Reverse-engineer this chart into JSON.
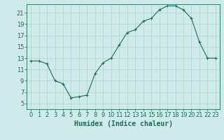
{
  "x": [
    0,
    1,
    2,
    3,
    4,
    5,
    6,
    7,
    8,
    9,
    10,
    11,
    12,
    13,
    14,
    15,
    16,
    17,
    18,
    19,
    20,
    21,
    22,
    23
  ],
  "y": [
    12.5,
    12.5,
    12.0,
    9.0,
    8.5,
    6.0,
    6.2,
    6.5,
    10.3,
    12.2,
    13.0,
    15.3,
    17.5,
    18.0,
    19.5,
    20.0,
    21.5,
    22.2,
    22.2,
    21.5,
    20.0,
    15.8,
    13.0,
    13.0
  ],
  "xlabel": "Humidex (Indice chaleur)",
  "ylim": [
    4,
    22.5
  ],
  "xlim": [
    -0.5,
    23.5
  ],
  "yticks": [
    5,
    7,
    9,
    11,
    13,
    15,
    17,
    19,
    21
  ],
  "xticks": [
    0,
    1,
    2,
    3,
    4,
    5,
    6,
    7,
    8,
    9,
    10,
    11,
    12,
    13,
    14,
    15,
    16,
    17,
    18,
    19,
    20,
    21,
    22,
    23
  ],
  "line_color": "#1a6b5a",
  "marker": "+",
  "bg_color": "#ceeaea",
  "grid_color": "#aed4d0",
  "axis_color": "#1a6b5a",
  "xlabel_fontsize": 7,
  "tick_fontsize": 6,
  "linewidth": 0.8,
  "markersize": 3,
  "markeredgewidth": 0.8
}
